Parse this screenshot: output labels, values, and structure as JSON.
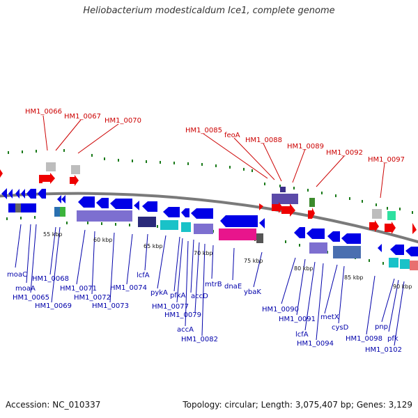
{
  "title": "Heliobacterium modesticaldum Ice1, complete genome",
  "accession": "Accession: NC_010337",
  "summary": "Topology: circular; Length: 3,075,407 bp; Genes: 3,129",
  "colors": {
    "backbone": "#7a7a7a",
    "forward_tick": "#1a7a1a",
    "reverse_tick": "#1a7a1a",
    "forward_label": "#cc0000",
    "reverse_label": "#0000aa",
    "cds_blue": "#0000e6",
    "rna_red": "#ee0000",
    "cog_purple": "#7d6fd0",
    "cog_cyan": "#19c2c8",
    "cog_magenta": "#e8158c",
    "cog_grey": "#bdbdbd",
    "cog_green": "#3cb43c"
  },
  "ticks": [
    "55 kbp",
    "60 kbp",
    "65 kbp",
    "70 kbp",
    "75 kbp",
    "80 kbp",
    "85 kbp",
    "90 kbp"
  ],
  "forward_labels": [
    "HM1_0066",
    "HM1_0067",
    "HM1_0070",
    "HM1_0085",
    "feoA",
    "HM1_0088",
    "HM1_0089",
    "HM1_0092",
    "HM1_0097"
  ],
  "reverse_labels": [
    "moaC",
    "moaA",
    "HM1_0065",
    "HM1_0068",
    "HM1_0069",
    "HM1_0071",
    "HM1_0072",
    "HM1_0073",
    "HM1_0074",
    "lcfA",
    "pykA",
    "pfkA",
    "HM1_0077",
    "accD",
    "HM1_0079",
    "accA",
    "HM1_0082",
    "mtrB",
    "dnaE",
    "ybaK",
    "HM1_0090",
    "HM1_0091",
    "lcfA",
    "HM1_0094",
    "metX",
    "cysD",
    "HM1_0098",
    "pnp",
    "pfk",
    "HM1_0102"
  ]
}
